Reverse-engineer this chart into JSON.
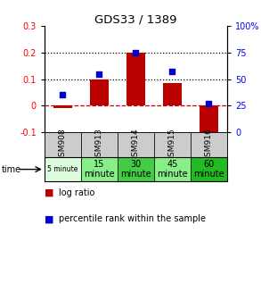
{
  "title": "GDS33 / 1389",
  "samples": [
    "GSM908",
    "GSM913",
    "GSM914",
    "GSM915",
    "GSM916"
  ],
  "log_ratio": [
    -0.01,
    0.1,
    0.2,
    0.085,
    -0.12
  ],
  "percentile": [
    35,
    55,
    75,
    57,
    27
  ],
  "ylim_left": [
    -0.1,
    0.3
  ],
  "ylim_right": [
    0,
    100
  ],
  "yticks_left": [
    -0.1,
    0.0,
    0.1,
    0.2,
    0.3
  ],
  "yticks_right": [
    0,
    25,
    50,
    75,
    100
  ],
  "ytick_labels_right": [
    "0",
    "25",
    "50",
    "75",
    "100%"
  ],
  "bar_color": "#bb0000",
  "dot_color": "#0000cc",
  "time_labels": [
    "5 minute",
    "15\nminute",
    "30\nminute",
    "45\nminute",
    "60\nminute"
  ],
  "time_colors": [
    "#ddfcdd",
    "#88ee88",
    "#44cc44",
    "#88ee88",
    "#22bb22"
  ],
  "gsm_bg": "#cccccc",
  "bar_width": 0.5
}
